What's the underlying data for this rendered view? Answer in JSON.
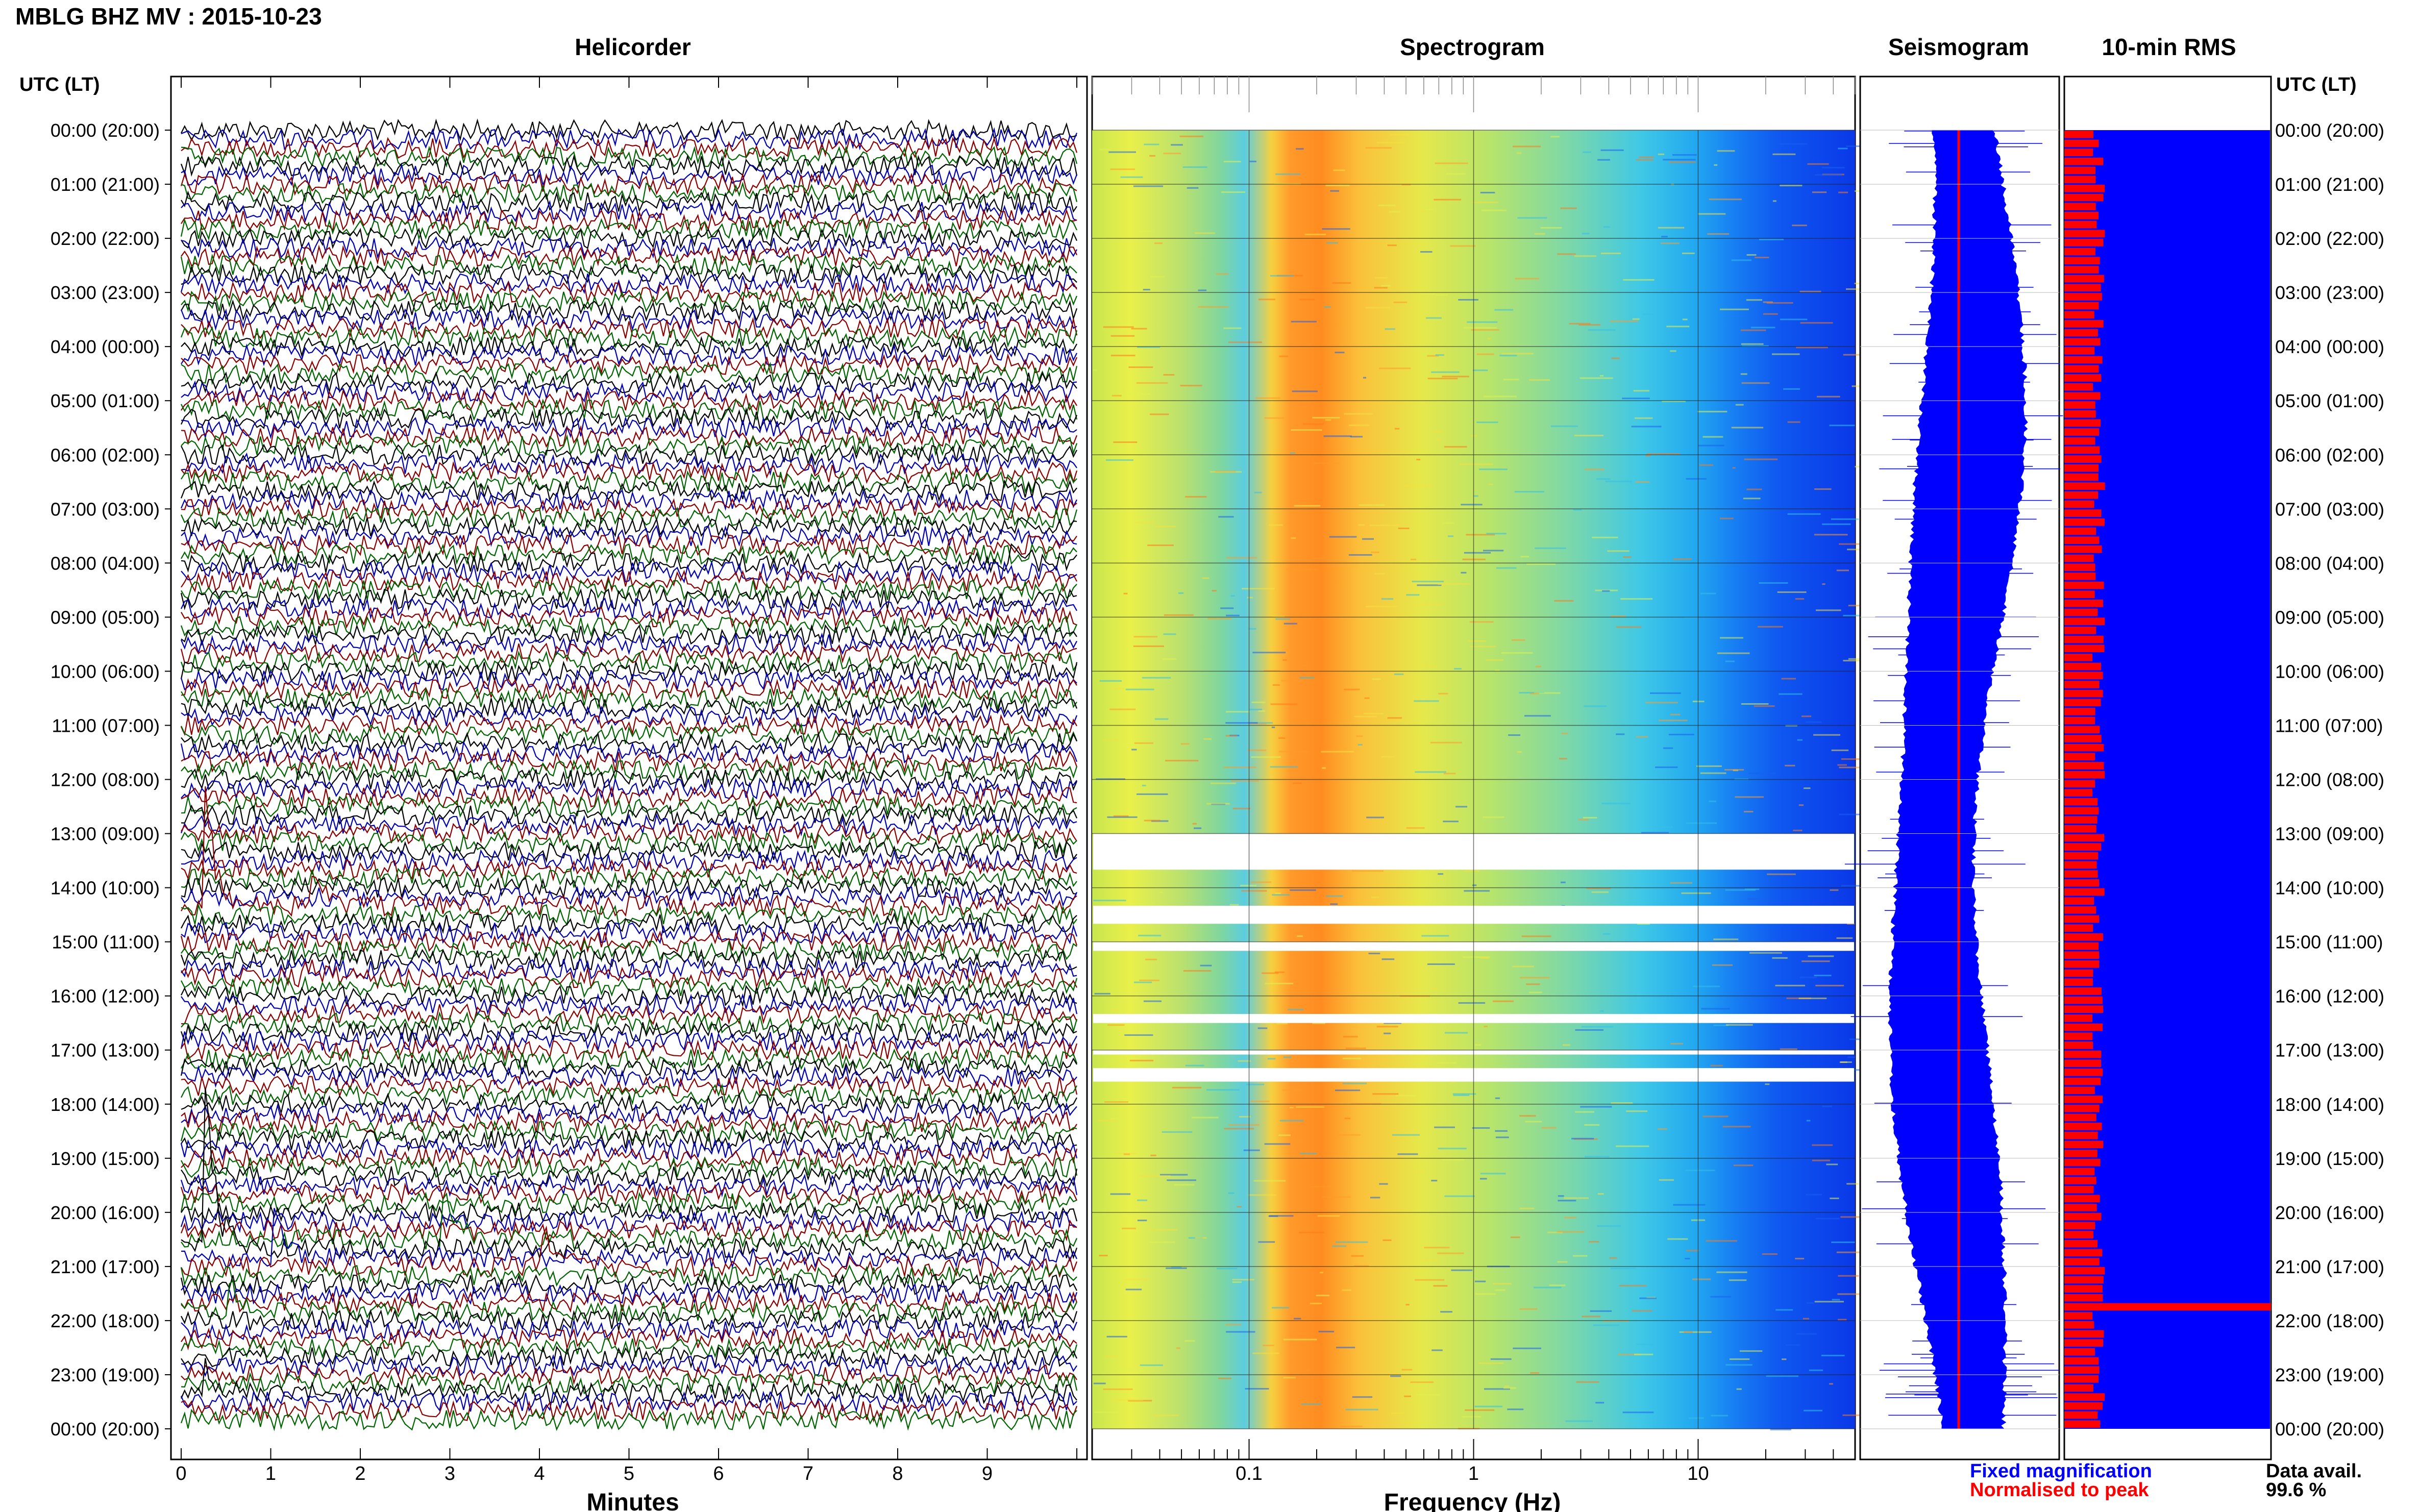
{
  "header": {
    "station_title": "MBLG BHZ MV : 2015-10-23",
    "utc_lt_label": "UTC (LT)"
  },
  "panels": {
    "helicorder": "Helicorder",
    "spectrogram": "Spectrogram",
    "seismogram": "Seismogram",
    "rms": "10-min RMS"
  },
  "axes": {
    "minutes_label": "Minutes",
    "frequency_label": "Frequency (Hz)"
  },
  "legend": {
    "fixed": "Fixed magnification",
    "normalised": "Normalised to peak",
    "fixed_color": "#0000ff",
    "normalised_color": "#ff0000"
  },
  "data_availability": {
    "label": "Data avail.",
    "value": "99.6 %"
  },
  "colors": {
    "trace_colors": [
      "#000000",
      "#0000b0",
      "#8b0000",
      "#006400"
    ],
    "seismogram_fill": "#0000ff",
    "rms_fill": "#0000ff",
    "rms_bar": "#ff0000"
  },
  "chart_data": [
    {
      "type": "line",
      "panel": "Helicorder",
      "title": "Helicorder",
      "xlabel": "Minutes",
      "x_ticks": [
        "0",
        "1",
        "2",
        "3",
        "4",
        "5",
        "6",
        "7",
        "8",
        "9"
      ],
      "xlim": [
        0,
        10
      ],
      "ylabel": "UTC (LT)",
      "y_ticks": [
        "00:00 (20:00)",
        "01:00 (21:00)",
        "02:00 (22:00)",
        "03:00 (23:00)",
        "04:00 (00:00)",
        "05:00 (01:00)",
        "06:00 (02:00)",
        "07:00 (03:00)",
        "08:00 (04:00)",
        "09:00 (05:00)",
        "10:00 (06:00)",
        "11:00 (07:00)",
        "12:00 (08:00)",
        "13:00 (09:00)",
        "14:00 (10:00)",
        "15:00 (11:00)",
        "16:00 (12:00)",
        "17:00 (13:00)",
        "18:00 (14:00)",
        "19:00 (15:00)",
        "20:00 (16:00)",
        "21:00 (17:00)",
        "22:00 (18:00)",
        "23:00 (19:00)",
        "00:00 (20:00)"
      ],
      "rows": 144,
      "row_minutes": 10
    },
    {
      "type": "heatmap",
      "panel": "Spectrogram",
      "title": "Spectrogram",
      "xlabel": "Frequency (Hz)",
      "x_scale": "log",
      "x_ticks": [
        "0.1",
        "1",
        "10"
      ],
      "xlim": [
        0.02,
        50
      ],
      "colormap": "jet",
      "data_gaps_utc": [
        "13:00-13:40",
        "14:20-14:40",
        "15:00-15:10",
        "16:20-16:30",
        "17:00-17:05",
        "17:20-17:35"
      ]
    },
    {
      "type": "line",
      "panel": "Seismogram",
      "title": "Seismogram",
      "series": [
        {
          "name": "Fixed magnification",
          "color": "#0000ff"
        },
        {
          "name": "Normalised to peak",
          "color": "#ff0000"
        }
      ]
    },
    {
      "type": "bar",
      "panel": "10-min RMS",
      "title": "10-min RMS",
      "bins": 144,
      "peak_utc": "21:40"
    }
  ]
}
